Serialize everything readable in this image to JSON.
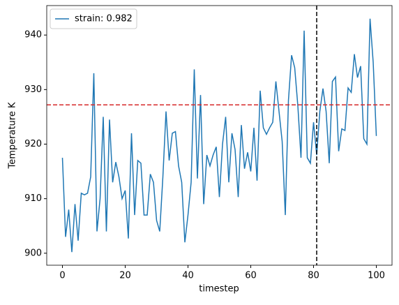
{
  "chart_data": {
    "type": "line",
    "xlabel": "timestep",
    "ylabel": "Temperature K",
    "x": [
      0,
      1,
      2,
      3,
      4,
      5,
      6,
      7,
      8,
      9,
      10,
      11,
      12,
      13,
      14,
      15,
      16,
      17,
      18,
      19,
      20,
      21,
      22,
      23,
      24,
      25,
      26,
      27,
      28,
      29,
      30,
      31,
      32,
      33,
      34,
      35,
      36,
      37,
      38,
      39,
      40,
      41,
      42,
      43,
      44,
      45,
      46,
      47,
      48,
      49,
      50,
      51,
      52,
      53,
      54,
      55,
      56,
      57,
      58,
      59,
      60,
      61,
      62,
      63,
      64,
      65,
      66,
      67,
      68,
      69,
      70,
      71,
      72,
      73,
      74,
      75,
      76,
      77,
      78,
      79,
      80,
      81,
      82,
      83,
      84,
      85,
      86,
      87,
      88,
      89,
      90,
      91,
      92,
      93,
      94,
      95,
      96,
      97,
      98,
      99,
      100
    ],
    "series": [
      {
        "name": "strain: 0.982",
        "color": "#1f77b4",
        "values": [
          917.5,
          903,
          908,
          900.2,
          909,
          902.3,
          911,
          910.7,
          911,
          914,
          933,
          904,
          910,
          925,
          904,
          924.5,
          913,
          916.7,
          914,
          910,
          911.5,
          902.7,
          922,
          907,
          917,
          916.5,
          907,
          907,
          914.5,
          913,
          906,
          904,
          914,
          926,
          917,
          922,
          922.3,
          916,
          913,
          902,
          907,
          913,
          933.7,
          913.7,
          929,
          909,
          918,
          916,
          918,
          919.5,
          910.3,
          920,
          925,
          913,
          922,
          919,
          910.3,
          923.5,
          915.5,
          918.5,
          915,
          923,
          913.3,
          929.8,
          923,
          921.8,
          923,
          924,
          931.5,
          926,
          920.5,
          907,
          928,
          936.3,
          934,
          927,
          917.5,
          940.8,
          917.5,
          916.5,
          924,
          918,
          926,
          930.2,
          926,
          916.5,
          931.5,
          932.3,
          918.7,
          922.8,
          922.5,
          930.3,
          929.5,
          936.5,
          932.2,
          934.3,
          921,
          920,
          943,
          935,
          921.5
        ]
      }
    ],
    "hline": {
      "value": 927.2,
      "color": "#d62728"
    },
    "vline": {
      "value": 81,
      "color": "#000000"
    },
    "xlim": [
      -5,
      105
    ],
    "xticks": [
      0,
      20,
      40,
      60,
      80,
      100
    ],
    "ylim": [
      897.8,
      945.4
    ],
    "yticks": [
      900,
      910,
      920,
      930,
      940
    ],
    "legend": "upper left"
  }
}
